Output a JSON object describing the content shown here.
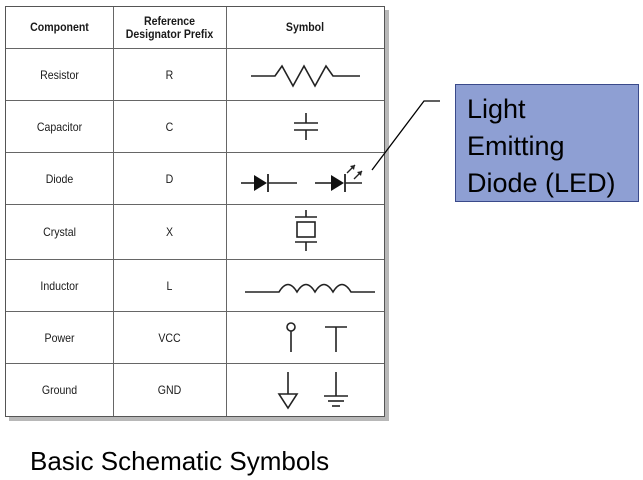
{
  "table": {
    "headers": {
      "component": "Component",
      "prefix_line1": "Reference",
      "prefix_line2": "Designator Prefix",
      "symbol": "Symbol"
    },
    "rows": [
      {
        "component": "Resistor",
        "prefix": "R",
        "symbol_icon": "resistor-symbol"
      },
      {
        "component": "Capacitor",
        "prefix": "C",
        "symbol_icon": "capacitor-symbol"
      },
      {
        "component": "Diode",
        "prefix": "D",
        "symbol_icon": "diode-and-led-symbols"
      },
      {
        "component": "Crystal",
        "prefix": "X",
        "symbol_icon": "crystal-symbol"
      },
      {
        "component": "Inductor",
        "prefix": "L",
        "symbol_icon": "inductor-symbol"
      },
      {
        "component": "Power",
        "prefix": "VCC",
        "symbol_icon": "power-symbols"
      },
      {
        "component": "Ground",
        "prefix": "GND",
        "symbol_icon": "ground-symbols"
      }
    ]
  },
  "callout": {
    "line1": "Light",
    "line2": "Emitting",
    "line3": "Diode (LED)",
    "fill_color": "#8e9fd3"
  },
  "caption": "Basic Schematic Symbols"
}
